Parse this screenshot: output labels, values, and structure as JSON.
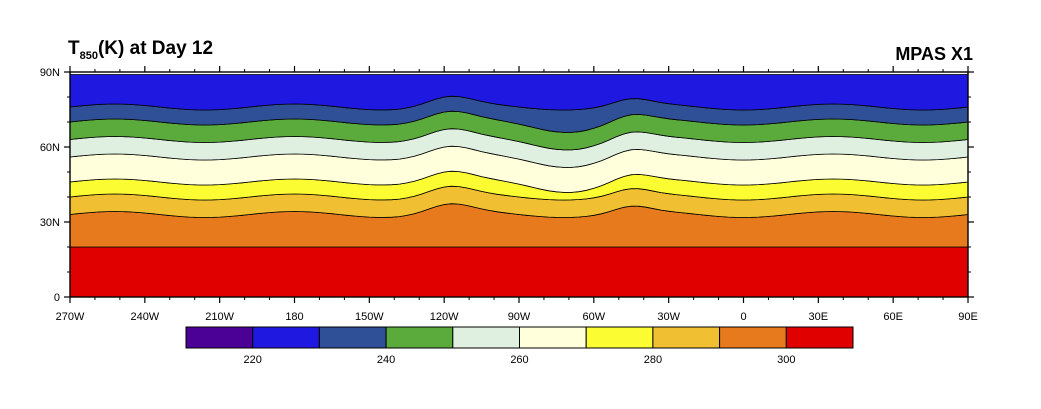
{
  "title": {
    "main": "(K) at Day 12",
    "symbol": "T",
    "subscript": "850",
    "right": "MPAS X1"
  },
  "chart_data": {
    "type": "contour-map",
    "xlabel": "",
    "ylabel": "",
    "x_ticks": [
      "270W",
      "240W",
      "210W",
      "180",
      "150W",
      "120W",
      "90W",
      "60W",
      "30W",
      "0",
      "30E",
      "60E",
      "90E"
    ],
    "y_ticks": [
      "0",
      "30N",
      "60N",
      "90N"
    ],
    "xlim": [
      -270,
      90
    ],
    "ylim": [
      0,
      90
    ],
    "colorbar": {
      "bins": [
        {
          "color": "#4b0096"
        },
        {
          "color": "#1f18e0"
        },
        {
          "color": "#2f5096"
        },
        {
          "color": "#5aab3c"
        },
        {
          "color": "#e0f0e0"
        },
        {
          "color": "#ffffdc"
        },
        {
          "color": "#fcfc32"
        },
        {
          "color": "#f0c032"
        },
        {
          "color": "#e87a1e"
        },
        {
          "color": "#e00000"
        }
      ],
      "labels": [
        "220",
        "240",
        "260",
        "280",
        "300"
      ]
    },
    "levels": [
      {
        "color": "#e00000",
        "from": 0,
        "to": 20
      },
      {
        "color": "#e87a1e",
        "from": 20,
        "to": 33
      },
      {
        "color": "#f0c032",
        "from": 33,
        "to": 40
      },
      {
        "color": "#fcfc32",
        "from": 40,
        "to": 46
      },
      {
        "color": "#ffffdc",
        "from": 46,
        "to": 56
      },
      {
        "color": "#e0f0e0",
        "from": 56,
        "to": 63
      },
      {
        "color": "#5aab3c",
        "from": 63,
        "to": 70
      },
      {
        "color": "#2f5096",
        "from": 70,
        "to": 76
      },
      {
        "color": "#1f18e0",
        "from": 76,
        "to": 89
      }
    ]
  }
}
